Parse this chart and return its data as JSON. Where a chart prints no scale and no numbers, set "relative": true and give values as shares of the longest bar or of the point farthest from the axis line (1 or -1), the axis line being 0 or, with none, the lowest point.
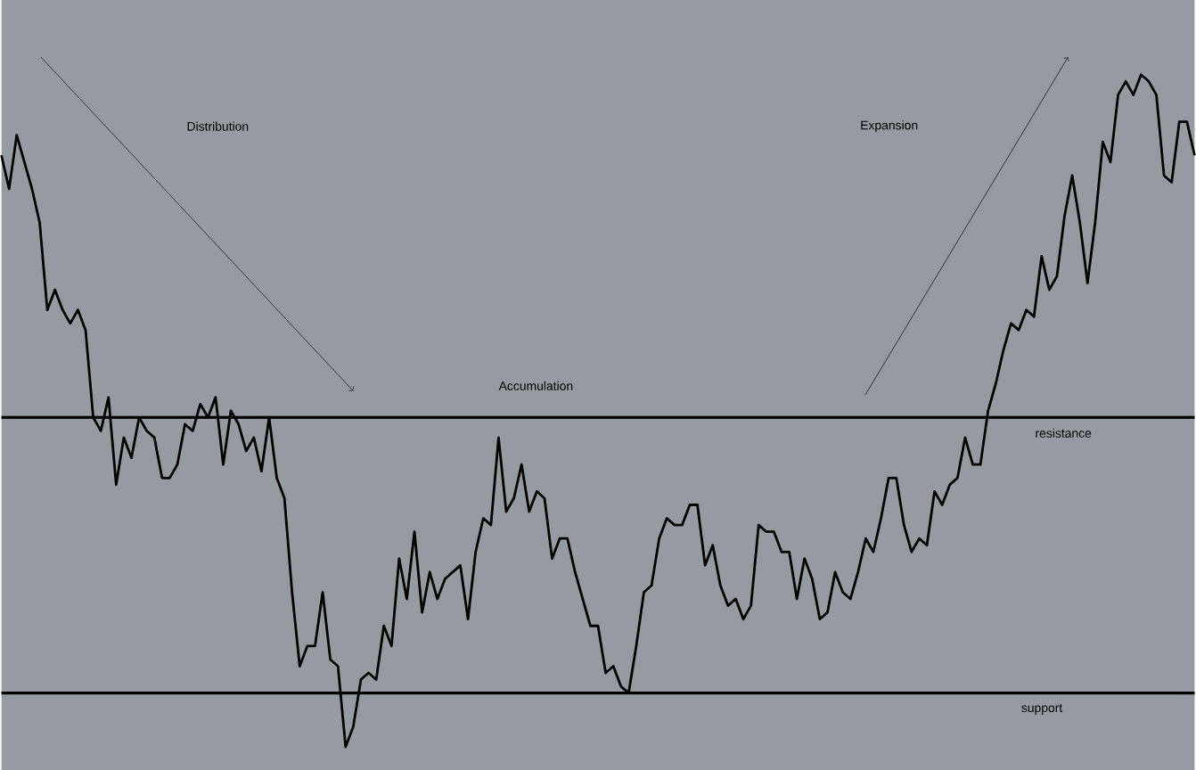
{
  "chart_data": {
    "type": "line",
    "relative": true,
    "annotations": [
      "Distribution",
      "Accumulation",
      "Expansion"
    ],
    "categories": [
      null,
      null,
      null,
      null,
      null,
      null,
      null,
      null,
      null,
      null,
      null,
      null,
      null,
      null,
      null,
      null,
      null,
      null,
      null,
      null,
      null,
      null,
      null,
      null,
      null,
      null,
      null,
      null,
      null,
      null,
      null,
      null,
      null,
      null,
      null,
      null,
      null,
      null,
      null,
      null,
      null,
      null,
      null,
      null,
      null,
      null,
      null,
      null,
      null,
      null,
      null,
      null,
      null,
      null,
      null,
      null,
      null,
      null,
      null,
      null,
      null,
      null,
      null,
      null,
      null,
      null,
      null,
      null,
      null,
      null,
      null,
      null,
      null,
      null,
      null,
      null,
      null,
      null,
      null,
      null,
      null,
      null,
      null,
      null,
      null,
      null,
      null,
      null,
      null,
      null,
      null,
      null,
      null,
      null,
      null,
      null,
      null,
      null,
      null,
      null,
      null,
      null,
      null,
      null,
      null,
      null,
      null,
      null,
      null,
      null,
      null,
      null,
      null,
      null,
      null,
      null,
      null,
      null,
      null,
      null,
      null,
      null,
      null,
      null,
      null,
      null,
      null,
      null,
      null,
      null,
      null,
      null,
      null,
      null,
      null,
      null,
      null,
      null,
      null,
      null,
      null,
      null,
      null,
      null,
      null,
      null,
      null,
      null,
      null,
      null,
      null,
      null,
      null,
      null,
      null,
      null,
      null
    ],
    "series": [
      {
        "color": "#000000",
        "values": [
          0.88,
          0.83,
          0.91,
          0.87,
          0.83,
          0.78,
          0.65,
          0.68,
          0.65,
          0.63,
          0.65,
          0.62,
          0.49,
          0.47,
          0.52,
          0.39,
          0.46,
          0.43,
          0.49,
          0.47,
          0.46,
          0.4,
          0.4,
          0.42,
          0.48,
          0.47,
          0.51,
          0.49,
          0.52,
          0.42,
          0.5,
          0.48,
          0.44,
          0.46,
          0.41,
          0.49,
          0.4,
          0.37,
          0.23,
          0.12,
          0.15,
          0.15,
          0.23,
          0.13,
          0.12,
          0,
          0.03,
          0.1,
          0.11,
          0.1,
          0.18,
          0.15,
          0.28,
          0.22,
          0.32,
          0.2,
          0.26,
          0.22,
          0.25,
          0.26,
          0.27,
          0.19,
          0.29,
          0.34,
          0.33,
          0.46,
          0.35,
          0.37,
          0.42,
          0.35,
          0.38,
          0.37,
          0.28,
          0.31,
          0.31,
          0.26,
          0.22,
          0.18,
          0.18,
          0.11,
          0.12,
          0.09,
          0.08,
          0.15,
          0.23,
          0.24,
          0.31,
          0.34,
          0.33,
          0.33,
          0.36,
          0.36,
          0.27,
          0.3,
          0.24,
          0.21,
          0.22,
          0.19,
          0.21,
          0.33,
          0.32,
          0.32,
          0.29,
          0.29,
          0.22,
          0.28,
          0.25,
          0.19,
          0.2,
          0.26,
          0.23,
          0.22,
          0.26,
          0.31,
          0.29,
          0.34,
          0.4,
          0.4,
          0.33,
          0.29,
          0.31,
          0.3,
          0.38,
          0.36,
          0.39,
          0.4,
          0.46,
          0.42,
          0.42,
          0.5,
          0.54,
          0.59,
          0.63,
          0.62,
          0.65,
          0.64,
          0.73,
          0.68,
          0.7,
          0.79,
          0.85,
          0.78,
          0.69,
          0.78,
          0.9,
          0.87,
          0.97,
          0.99,
          0.97,
          1,
          0.99,
          0.97,
          0.85,
          0.84,
          0.93,
          0.93,
          0.88
        ]
      }
    ],
    "ref_lines": [
      {
        "axis": "y",
        "value": 0.49,
        "label": "resistance",
        "color": "#000000"
      },
      {
        "axis": "y",
        "value": 0.08,
        "label": "support",
        "color": "#000000"
      }
    ]
  }
}
